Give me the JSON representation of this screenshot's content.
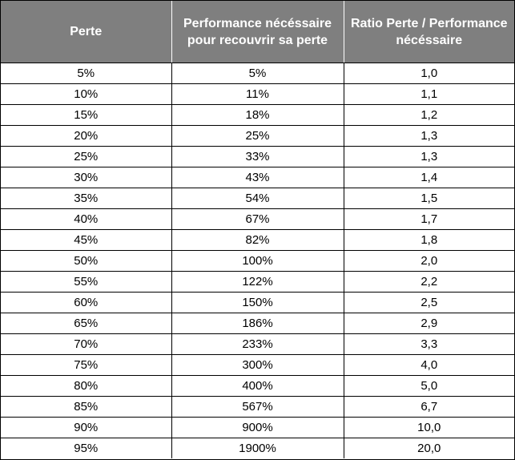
{
  "colors": {
    "header_bg": "#7f7f7f",
    "header_text": "#ffffff",
    "cell_text": "#000000",
    "border": "#000000"
  },
  "table": {
    "headers": [
      "Perte",
      "Performance nécéssaire pour recouvrir sa perte",
      "Ratio Perte / Performance nécéssaire"
    ],
    "rows": [
      [
        "5%",
        "5%",
        "1,0"
      ],
      [
        "10%",
        "11%",
        "1,1"
      ],
      [
        "15%",
        "18%",
        "1,2"
      ],
      [
        "20%",
        "25%",
        "1,3"
      ],
      [
        "25%",
        "33%",
        "1,3"
      ],
      [
        "30%",
        "43%",
        "1,4"
      ],
      [
        "35%",
        "54%",
        "1,5"
      ],
      [
        "40%",
        "67%",
        "1,7"
      ],
      [
        "45%",
        "82%",
        "1,8"
      ],
      [
        "50%",
        "100%",
        "2,0"
      ],
      [
        "55%",
        "122%",
        "2,2"
      ],
      [
        "60%",
        "150%",
        "2,5"
      ],
      [
        "65%",
        "186%",
        "2,9"
      ],
      [
        "70%",
        "233%",
        "3,3"
      ],
      [
        "75%",
        "300%",
        "4,0"
      ],
      [
        "80%",
        "400%",
        "5,0"
      ],
      [
        "85%",
        "567%",
        "6,7"
      ],
      [
        "90%",
        "900%",
        "10,0"
      ],
      [
        "95%",
        "1900%",
        "20,0"
      ]
    ]
  }
}
